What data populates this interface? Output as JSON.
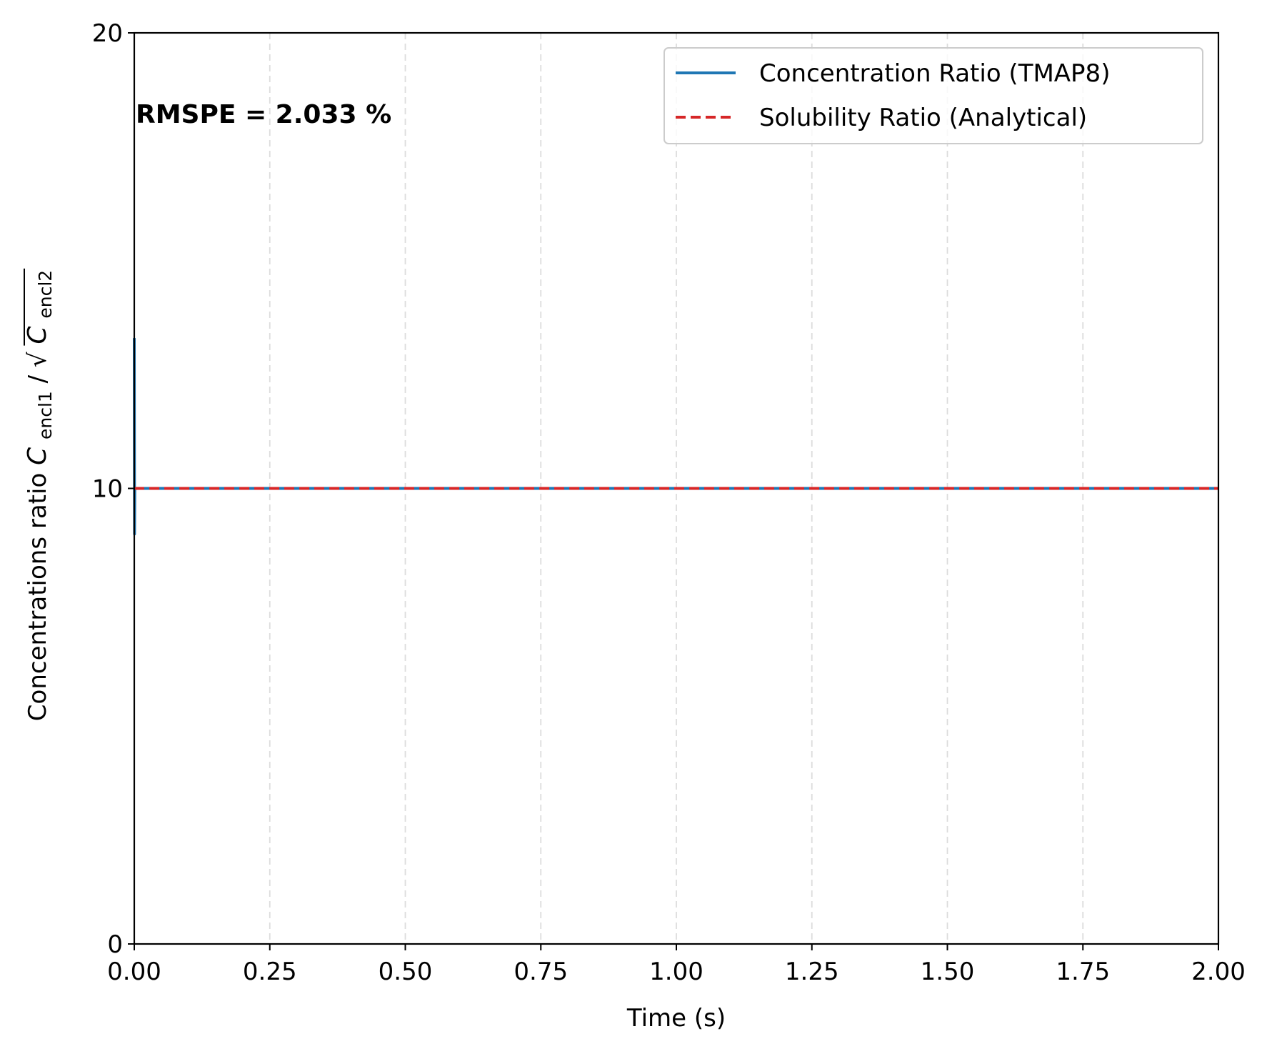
{
  "chart_data": {
    "type": "line",
    "title": "",
    "xlabel": "Time (s)",
    "ylabel": {
      "prefix": "Concentrations ratio ",
      "numerator_symbol": "C",
      "numerator_sub": "encl1",
      "slash": "/",
      "root": "√",
      "denominator_symbol": "C",
      "denominator_sub": "encl2"
    },
    "xlim": [
      0,
      2
    ],
    "ylim": [
      0,
      20
    ],
    "x_ticks": [
      0,
      0.25,
      0.5,
      0.75,
      1.0,
      1.25,
      1.5,
      1.75,
      2.0
    ],
    "x_tick_labels": [
      "0.00",
      "0.25",
      "0.50",
      "0.75",
      "1.00",
      "1.25",
      "1.50",
      "1.75",
      "2.00"
    ],
    "y_ticks": [
      0,
      10,
      20
    ],
    "y_tick_labels": [
      "0",
      "10",
      "20"
    ],
    "grid": "x-only, dashed, light gray",
    "legend_position": "upper right",
    "annotation": "RMSPE = 2.033 %",
    "series": [
      {
        "name": "Concentration Ratio (TMAP8)",
        "color": "#1f77b4",
        "style": "solid",
        "points": [
          {
            "x": 0.0,
            "y": 13.3
          },
          {
            "x": 0.0005,
            "y": 9.0
          },
          {
            "x": 0.001,
            "y": 10.0
          },
          {
            "x": 0.01,
            "y": 10.0
          },
          {
            "x": 0.25,
            "y": 10.0
          },
          {
            "x": 0.5,
            "y": 10.0
          },
          {
            "x": 0.75,
            "y": 10.0
          },
          {
            "x": 1.0,
            "y": 10.0
          },
          {
            "x": 1.25,
            "y": 10.0
          },
          {
            "x": 1.5,
            "y": 10.0
          },
          {
            "x": 1.75,
            "y": 10.0
          },
          {
            "x": 2.0,
            "y": 10.0
          }
        ]
      },
      {
        "name": "Solubility Ratio (Analytical)",
        "color": "#d62728",
        "style": "dashed",
        "points": [
          {
            "x": 0.0,
            "y": 10.0
          },
          {
            "x": 2.0,
            "y": 10.0
          }
        ]
      }
    ]
  }
}
